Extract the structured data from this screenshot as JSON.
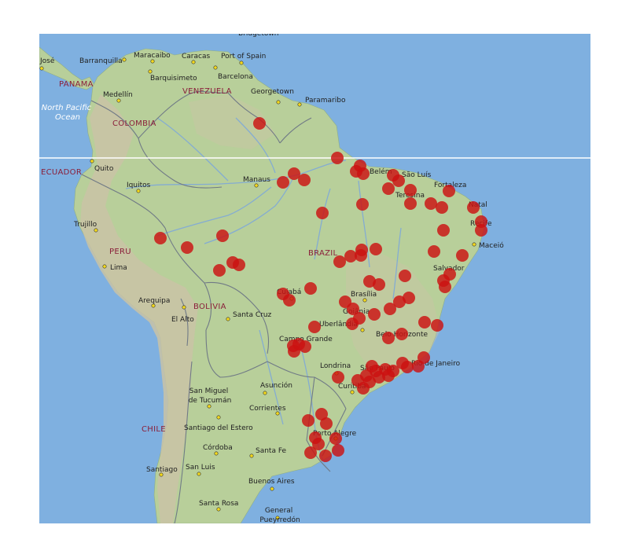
{
  "colors": {
    "ocean": "#7fb0e0",
    "land": "#b8cf9a",
    "highland": "#c9c3a6",
    "river": "#7fa9d8",
    "border": "#707a86",
    "marker": "#cc1111",
    "city_dot": "#f2d81e",
    "country_label": "#8a1f3a"
  },
  "ocean_labels": [
    {
      "id": "north-pacific",
      "lines": [
        "North Pacific",
        "Ocean"
      ]
    }
  ],
  "country_labels": [
    {
      "id": "panama",
      "text": "PANAMA"
    },
    {
      "id": "venezuela",
      "text": "VENEZUELA"
    },
    {
      "id": "colombia",
      "text": "COLOMBIA"
    },
    {
      "id": "ecuador",
      "text": "ECUADOR"
    },
    {
      "id": "peru",
      "text": "PERU"
    },
    {
      "id": "brazil",
      "text": "BRAZIL"
    },
    {
      "id": "bolivia",
      "text": "BOLIVIA"
    },
    {
      "id": "chile",
      "text": "CHILE"
    }
  ],
  "cities": [
    {
      "id": "bridgetown",
      "text": "Bridgetown"
    },
    {
      "id": "jose",
      "text": "José"
    },
    {
      "id": "barranquilla",
      "text": "Barranquilla"
    },
    {
      "id": "maracaibo",
      "text": "Maracaibo"
    },
    {
      "id": "caracas",
      "text": "Caracas"
    },
    {
      "id": "port-of-spain",
      "text": "Port of Spain"
    },
    {
      "id": "barquisimeto",
      "text": "Barquisimeto"
    },
    {
      "id": "barcelona",
      "text": "Barcelona"
    },
    {
      "id": "medellin",
      "text": "Medellín"
    },
    {
      "id": "georgetown",
      "text": "Georgetown"
    },
    {
      "id": "paramaribo",
      "text": "Paramaribo"
    },
    {
      "id": "quito",
      "text": "Quito"
    },
    {
      "id": "manaus",
      "text": "Manaus"
    },
    {
      "id": "belem",
      "text": "Belém"
    },
    {
      "id": "sao-luis",
      "text": "São Luís"
    },
    {
      "id": "fortaleza",
      "text": "Fortaleza"
    },
    {
      "id": "teresina",
      "text": "Teresina"
    },
    {
      "id": "iquitos",
      "text": "Iquitos"
    },
    {
      "id": "natal",
      "text": "Natal"
    },
    {
      "id": "recife",
      "text": "Recife"
    },
    {
      "id": "trujillo",
      "text": "Trujillo"
    },
    {
      "id": "maceio",
      "text": "Maceió"
    },
    {
      "id": "lima",
      "text": "Lima"
    },
    {
      "id": "salvador",
      "text": "Salvador"
    },
    {
      "id": "cuiaba",
      "text": "Cuiabá"
    },
    {
      "id": "brasilia",
      "text": "Brasília"
    },
    {
      "id": "arequipa",
      "text": "Arequipa"
    },
    {
      "id": "goiania",
      "text": "Goiânia"
    },
    {
      "id": "el-alto",
      "text": "El Alto"
    },
    {
      "id": "santa-cruz",
      "text": "Santa Cruz"
    },
    {
      "id": "uberlandia",
      "text": "Uberlândia"
    },
    {
      "id": "belo-horizonte",
      "text": "Belo Horizonte"
    },
    {
      "id": "campo-grande",
      "text": "Campo Grande"
    },
    {
      "id": "rio-de-janeiro",
      "text": "Rio de Janeiro"
    },
    {
      "id": "londrina",
      "text": "Londrina"
    },
    {
      "id": "sao-paulo",
      "text": "São Paulo"
    },
    {
      "id": "curitiba",
      "text": "Curitiba"
    },
    {
      "id": "asuncion",
      "text": "Asunción"
    },
    {
      "id": "san-miguel",
      "lines": [
        "San Miguel",
        "de Tucumán"
      ]
    },
    {
      "id": "corrientes",
      "text": "Corrientes"
    },
    {
      "id": "santiago-del-estero",
      "text": "Santiago del Estero"
    },
    {
      "id": "porto-alegre",
      "text": "Porto Alegre"
    },
    {
      "id": "cordoba",
      "text": "Córdoba"
    },
    {
      "id": "santa-fe",
      "text": "Santa Fe"
    },
    {
      "id": "santiago",
      "text": "Santiago"
    },
    {
      "id": "san-luis",
      "text": "San Luis"
    },
    {
      "id": "buenos-aires",
      "text": "Buenos Aires"
    },
    {
      "id": "santa-rosa",
      "text": "Santa Rosa"
    },
    {
      "id": "general-pueyrredon",
      "lines": [
        "General",
        "Pueyrredón"
      ]
    }
  ]
}
